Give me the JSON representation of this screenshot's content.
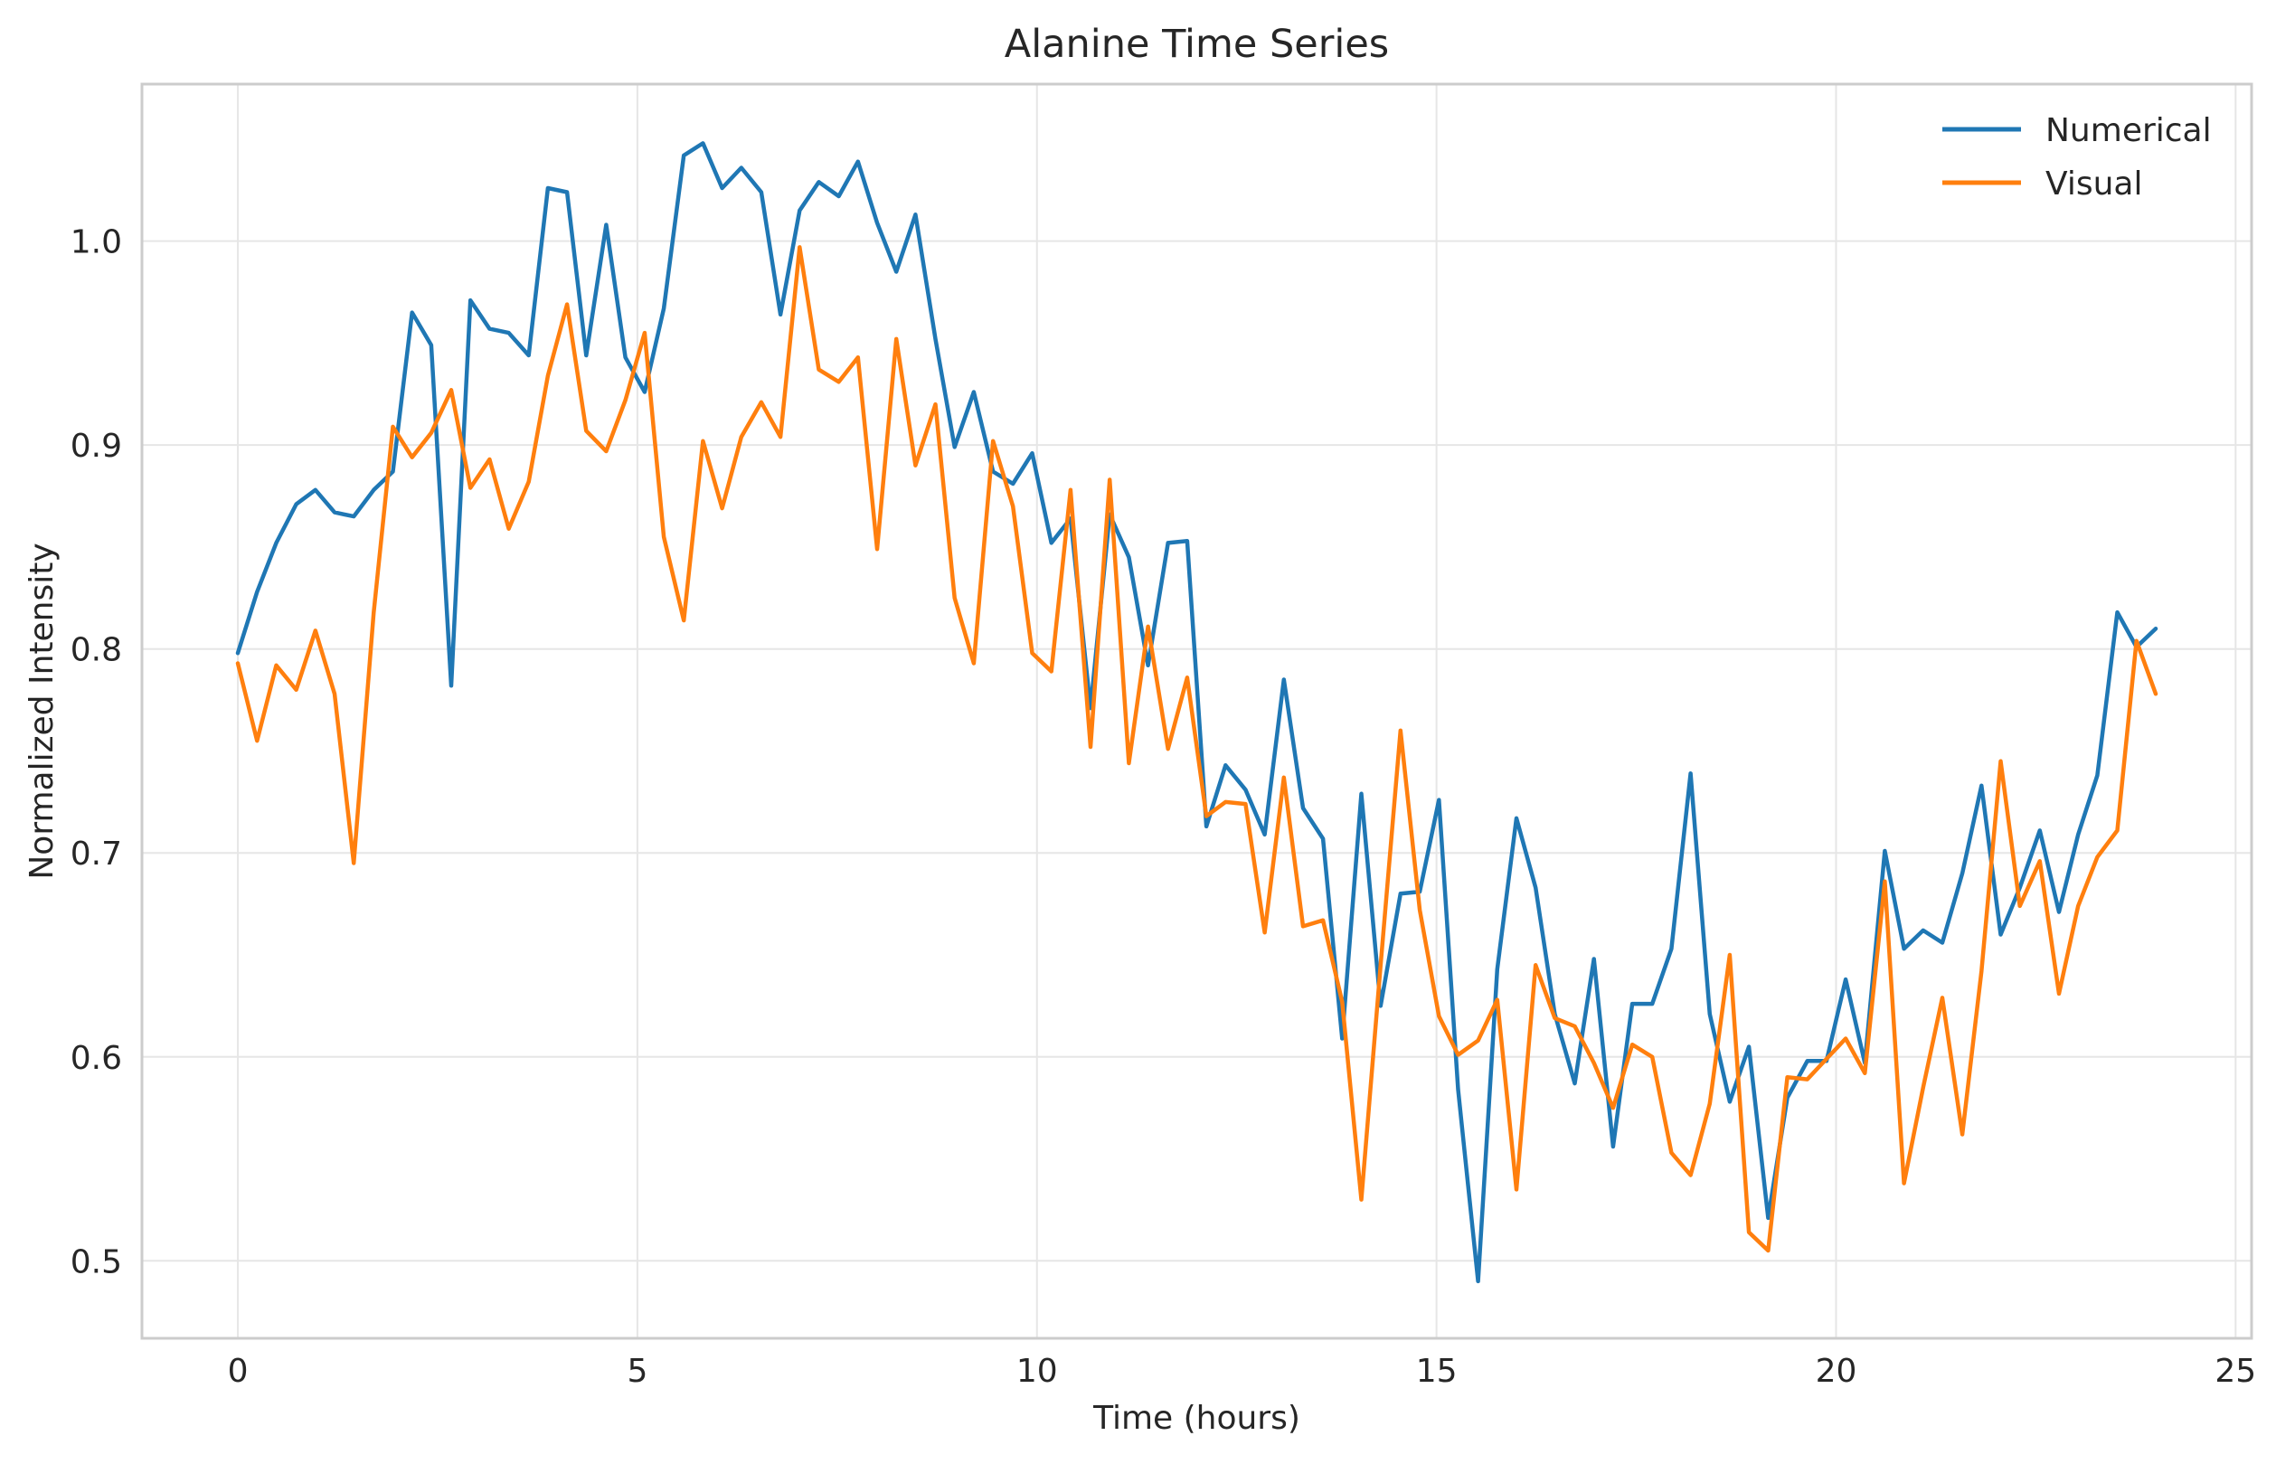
{
  "chart_data": {
    "type": "line",
    "title": "Alanine Time Series",
    "xlabel": "Time (hours)",
    "ylabel": "Normalized Intensity",
    "xlim": [
      -1.2,
      25.2
    ],
    "ylim": [
      0.462,
      1.077
    ],
    "xticks": [
      0,
      5,
      10,
      15,
      20,
      25
    ],
    "yticks": [
      0.5,
      0.6,
      0.7,
      0.8,
      0.9,
      1.0
    ],
    "xtick_labels": [
      "0",
      "5",
      "10",
      "15",
      "20",
      "25"
    ],
    "ytick_labels": [
      "0.5",
      "0.6",
      "0.7",
      "0.8",
      "0.9",
      "1.0"
    ],
    "grid": true,
    "legend_position": "top-right",
    "x": [
      0,
      0.24,
      0.48,
      0.73,
      0.97,
      1.21,
      1.45,
      1.7,
      1.94,
      2.18,
      2.42,
      2.67,
      2.91,
      3.15,
      3.39,
      3.64,
      3.88,
      4.12,
      4.36,
      4.61,
      4.85,
      5.09,
      5.33,
      5.58,
      5.82,
      6.06,
      6.3,
      6.55,
      6.79,
      7.03,
      7.27,
      7.52,
      7.76,
      8,
      8.24,
      8.48,
      8.73,
      8.97,
      9.21,
      9.45,
      9.7,
      9.94,
      10.18,
      10.42,
      10.67,
      10.91,
      11.15,
      11.39,
      11.64,
      11.88,
      12.12,
      12.36,
      12.61,
      12.85,
      13.09,
      13.33,
      13.58,
      13.82,
      14.06,
      14.3,
      14.55,
      14.79,
      15.03,
      15.27,
      15.52,
      15.76,
      16,
      16.24,
      16.48,
      16.73,
      16.97,
      17.21,
      17.45,
      17.7,
      17.94,
      18.18,
      18.42,
      18.67,
      18.91,
      19.15,
      19.39,
      19.64,
      19.88,
      20.12,
      20.36,
      20.61,
      20.85,
      21.09,
      21.33,
      21.58,
      21.82,
      22.06,
      22.3,
      22.55,
      22.79,
      23.03,
      23.27,
      23.52,
      23.76,
      24
    ],
    "series": [
      {
        "name": "Numerical",
        "color": "#1f77b4",
        "values": [
          0.798,
          0.828,
          0.852,
          0.871,
          0.878,
          0.867,
          0.865,
          0.878,
          0.887,
          0.965,
          0.949,
          0.782,
          0.971,
          0.957,
          0.955,
          0.944,
          1.026,
          1.024,
          0.944,
          1.008,
          0.943,
          0.926,
          0.967,
          1.042,
          1.048,
          1.026,
          1.036,
          1.024,
          0.964,
          1.015,
          1.029,
          1.022,
          1.039,
          1.009,
          0.985,
          1.013,
          0.952,
          0.899,
          0.926,
          0.887,
          0.881,
          0.896,
          0.852,
          0.864,
          0.771,
          0.866,
          0.845,
          0.792,
          0.852,
          0.853,
          0.713,
          0.743,
          0.731,
          0.709,
          0.785,
          0.722,
          0.707,
          0.609,
          0.729,
          0.625,
          0.68,
          0.681,
          0.726,
          0.584,
          0.49,
          0.643,
          0.717,
          0.683,
          0.621,
          0.587,
          0.648,
          0.556,
          0.626,
          0.626,
          0.653,
          0.739,
          0.621,
          0.578,
          0.605,
          0.521,
          0.58,
          0.598,
          0.598,
          0.638,
          0.597,
          0.701,
          0.653,
          0.662,
          0.656,
          0.69,
          0.733,
          0.66,
          0.683,
          0.711,
          0.671,
          0.709,
          0.738,
          0.818,
          0.801,
          0.81
        ]
      },
      {
        "name": "Visual",
        "color": "#ff7f0e",
        "values": [
          0.793,
          0.755,
          0.792,
          0.78,
          0.809,
          0.778,
          0.695,
          0.818,
          0.909,
          0.894,
          0.906,
          0.927,
          0.879,
          0.893,
          0.859,
          0.882,
          0.934,
          0.969,
          0.907,
          0.897,
          0.922,
          0.955,
          0.855,
          0.814,
          0.902,
          0.869,
          0.904,
          0.921,
          0.904,
          0.997,
          0.937,
          0.931,
          0.943,
          0.849,
          0.952,
          0.89,
          0.92,
          0.825,
          0.793,
          0.902,
          0.87,
          0.798,
          0.789,
          0.878,
          0.752,
          0.883,
          0.744,
          0.811,
          0.751,
          0.786,
          0.718,
          0.725,
          0.724,
          0.661,
          0.737,
          0.664,
          0.667,
          0.627,
          0.53,
          0.645,
          0.76,
          0.672,
          0.62,
          0.601,
          0.608,
          0.628,
          0.535,
          0.645,
          0.619,
          0.615,
          0.597,
          0.575,
          0.606,
          0.6,
          0.553,
          0.542,
          0.577,
          0.65,
          0.514,
          0.505,
          0.59,
          0.589,
          0.599,
          0.609,
          0.592,
          0.686,
          0.538,
          0.585,
          0.629,
          0.562,
          0.642,
          0.745,
          0.674,
          0.696,
          0.631,
          0.674,
          0.698,
          0.711,
          0.804,
          0.778
        ]
      }
    ]
  }
}
